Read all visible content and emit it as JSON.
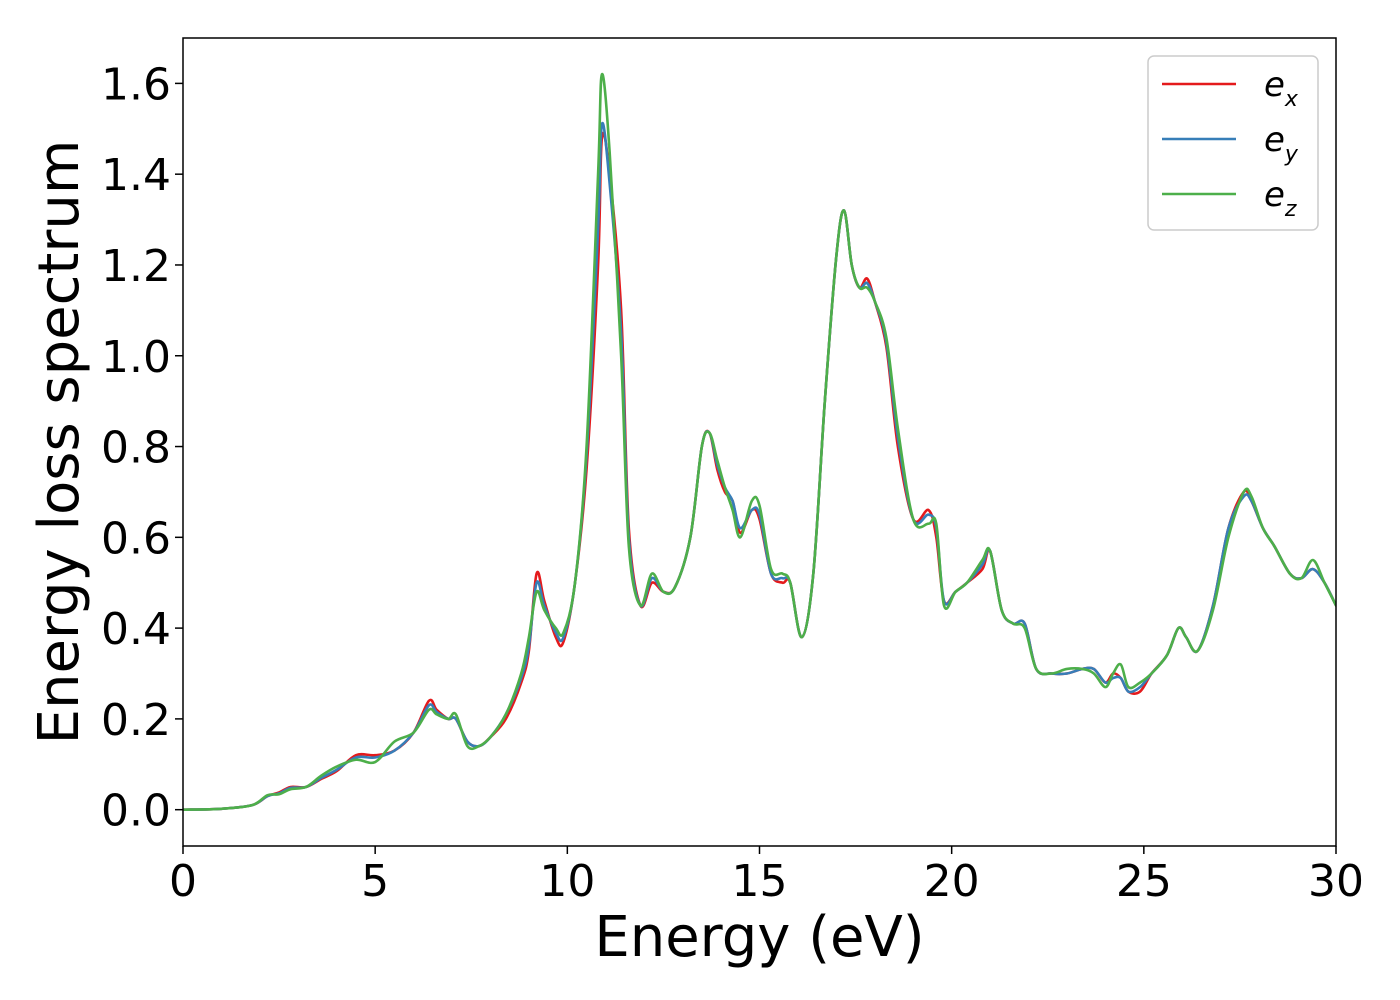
{
  "chart_data": {
    "type": "line",
    "title": "",
    "xlabel": "Energy (eV)",
    "ylabel": "Energy loss spectrum",
    "xlim": [
      0,
      30
    ],
    "ylim": [
      -0.08,
      1.7
    ],
    "xticks": [
      0,
      5,
      10,
      15,
      20,
      25,
      30
    ],
    "xtick_labels": [
      "0",
      "5",
      "10",
      "15",
      "20",
      "25",
      "30"
    ],
    "yticks": [
      0.0,
      0.2,
      0.4,
      0.6,
      0.8,
      1.0,
      1.2,
      1.4,
      1.6
    ],
    "ytick_labels": [
      "0.0",
      "0.2",
      "0.4",
      "0.6",
      "0.8",
      "1.0",
      "1.2",
      "1.4",
      "1.6"
    ],
    "grid": false,
    "legend_position": "top-right",
    "series": [
      {
        "name": "e",
        "subscript": "x",
        "color": "#e41a1c",
        "x": [
          0,
          1,
          1.8,
          2.2,
          2.5,
          2.8,
          3.2,
          3.6,
          4,
          4.5,
          5,
          5.5,
          6,
          6.4,
          6.6,
          6.9,
          7.1,
          7.4,
          7.7,
          8,
          8.4,
          8.8,
          9,
          9.2,
          9.4,
          9.7,
          9.9,
          10.2,
          10.5,
          10.8,
          10.9,
          11.1,
          11.4,
          11.6,
          11.9,
          12.2,
          12.5,
          12.8,
          13.2,
          13.5,
          13.7,
          13.9,
          14.1,
          14.3,
          14.5,
          14.8,
          15,
          15.3,
          15.6,
          15.8,
          16.1,
          16.4,
          16.7,
          17,
          17.2,
          17.4,
          17.6,
          17.8,
          18,
          18.3,
          18.6,
          19,
          19.4,
          19.6,
          19.8,
          20.1,
          20.4,
          20.8,
          21,
          21.3,
          21.6,
          21.9,
          22.2,
          22.6,
          23,
          23.4,
          23.7,
          24,
          24.2,
          24.4,
          24.6,
          24.9,
          25.2,
          25.6,
          25.9,
          26.1,
          26.4,
          26.8,
          27.2,
          27.6,
          27.8,
          28.1,
          28.4,
          28.8,
          29.1,
          29.4,
          29.7,
          30
        ],
        "y": [
          0,
          0.002,
          0.01,
          0.03,
          0.038,
          0.05,
          0.05,
          0.068,
          0.085,
          0.12,
          0.12,
          0.13,
          0.17,
          0.24,
          0.22,
          0.2,
          0.2,
          0.15,
          0.14,
          0.16,
          0.2,
          0.28,
          0.35,
          0.52,
          0.46,
          0.38,
          0.37,
          0.5,
          0.75,
          1.2,
          1.48,
          1.4,
          1.1,
          0.62,
          0.45,
          0.5,
          0.48,
          0.49,
          0.6,
          0.8,
          0.83,
          0.75,
          0.7,
          0.68,
          0.61,
          0.66,
          0.64,
          0.52,
          0.5,
          0.5,
          0.38,
          0.52,
          0.9,
          1.22,
          1.32,
          1.2,
          1.15,
          1.17,
          1.12,
          1.02,
          0.8,
          0.64,
          0.66,
          0.6,
          0.46,
          0.48,
          0.5,
          0.53,
          0.57,
          0.44,
          0.41,
          0.41,
          0.31,
          0.3,
          0.3,
          0.31,
          0.31,
          0.28,
          0.3,
          0.29,
          0.26,
          0.26,
          0.3,
          0.34,
          0.4,
          0.38,
          0.35,
          0.45,
          0.62,
          0.7,
          0.68,
          0.62,
          0.58,
          0.52,
          0.51,
          0.53,
          0.5,
          0.45
        ]
      },
      {
        "name": "e",
        "subscript": "y",
        "color": "#377eb8",
        "x": [
          0,
          1,
          1.8,
          2.2,
          2.5,
          2.8,
          3.2,
          3.6,
          4,
          4.5,
          5,
          5.5,
          6,
          6.4,
          6.6,
          6.9,
          7.1,
          7.4,
          7.7,
          8,
          8.4,
          8.8,
          9,
          9.2,
          9.4,
          9.7,
          9.9,
          10.2,
          10.5,
          10.8,
          10.9,
          11.1,
          11.4,
          11.6,
          11.9,
          12.2,
          12.5,
          12.8,
          13.2,
          13.5,
          13.7,
          13.9,
          14.1,
          14.3,
          14.5,
          14.8,
          15,
          15.3,
          15.6,
          15.8,
          16.1,
          16.4,
          16.7,
          17,
          17.2,
          17.4,
          17.6,
          17.8,
          18,
          18.3,
          18.6,
          19,
          19.4,
          19.6,
          19.8,
          20.1,
          20.4,
          20.8,
          21,
          21.3,
          21.6,
          21.9,
          22.2,
          22.6,
          23,
          23.4,
          23.7,
          24,
          24.2,
          24.4,
          24.6,
          24.9,
          25.2,
          25.6,
          25.9,
          26.1,
          26.4,
          26.8,
          27.2,
          27.6,
          27.8,
          28.1,
          28.4,
          28.8,
          29.1,
          29.4,
          29.7,
          30
        ],
        "y": [
          0,
          0.002,
          0.01,
          0.03,
          0.036,
          0.048,
          0.05,
          0.07,
          0.088,
          0.115,
          0.115,
          0.13,
          0.17,
          0.23,
          0.215,
          0.2,
          0.2,
          0.15,
          0.14,
          0.16,
          0.21,
          0.29,
          0.36,
          0.5,
          0.45,
          0.39,
          0.38,
          0.5,
          0.78,
          1.28,
          1.51,
          1.38,
          1.05,
          0.6,
          0.45,
          0.51,
          0.48,
          0.49,
          0.6,
          0.8,
          0.83,
          0.76,
          0.71,
          0.68,
          0.62,
          0.66,
          0.65,
          0.52,
          0.51,
          0.5,
          0.38,
          0.52,
          0.9,
          1.22,
          1.32,
          1.2,
          1.15,
          1.16,
          1.12,
          1.03,
          0.82,
          0.64,
          0.65,
          0.62,
          0.46,
          0.48,
          0.5,
          0.54,
          0.57,
          0.44,
          0.41,
          0.41,
          0.31,
          0.3,
          0.3,
          0.31,
          0.31,
          0.28,
          0.29,
          0.29,
          0.26,
          0.27,
          0.3,
          0.34,
          0.4,
          0.38,
          0.35,
          0.45,
          0.62,
          0.69,
          0.68,
          0.62,
          0.58,
          0.52,
          0.51,
          0.53,
          0.5,
          0.45
        ]
      },
      {
        "name": "e",
        "subscript": "z",
        "color": "#4daf4a",
        "x": [
          0,
          1,
          1.8,
          2.2,
          2.5,
          2.8,
          3.2,
          3.6,
          4,
          4.5,
          5,
          5.5,
          6,
          6.4,
          6.6,
          6.9,
          7.1,
          7.4,
          7.7,
          8,
          8.4,
          8.8,
          9,
          9.2,
          9.4,
          9.7,
          9.9,
          10.2,
          10.5,
          10.8,
          10.9,
          11.1,
          11.4,
          11.6,
          11.9,
          12.2,
          12.5,
          12.8,
          13.2,
          13.5,
          13.7,
          13.9,
          14.1,
          14.3,
          14.5,
          14.8,
          15,
          15.3,
          15.6,
          15.8,
          16.1,
          16.4,
          16.7,
          17,
          17.2,
          17.4,
          17.6,
          17.8,
          18,
          18.3,
          18.6,
          19,
          19.4,
          19.6,
          19.8,
          20.1,
          20.4,
          20.8,
          21,
          21.3,
          21.6,
          21.9,
          22.2,
          22.6,
          23,
          23.4,
          23.7,
          24,
          24.2,
          24.4,
          24.6,
          24.9,
          25.2,
          25.6,
          25.9,
          26.1,
          26.4,
          26.8,
          27.2,
          27.6,
          27.8,
          28.1,
          28.4,
          28.8,
          29.1,
          29.4,
          29.7,
          30
        ],
        "y": [
          0,
          0.002,
          0.01,
          0.032,
          0.034,
          0.045,
          0.05,
          0.075,
          0.095,
          0.11,
          0.105,
          0.15,
          0.17,
          0.22,
          0.21,
          0.2,
          0.21,
          0.14,
          0.14,
          0.16,
          0.21,
          0.3,
          0.38,
          0.48,
          0.44,
          0.4,
          0.39,
          0.5,
          0.8,
          1.4,
          1.62,
          1.45,
          1.0,
          0.58,
          0.45,
          0.52,
          0.48,
          0.49,
          0.6,
          0.8,
          0.83,
          0.77,
          0.71,
          0.66,
          0.6,
          0.68,
          0.67,
          0.53,
          0.52,
          0.5,
          0.38,
          0.52,
          0.9,
          1.22,
          1.32,
          1.2,
          1.15,
          1.15,
          1.12,
          1.04,
          0.84,
          0.64,
          0.63,
          0.63,
          0.45,
          0.48,
          0.5,
          0.55,
          0.57,
          0.44,
          0.41,
          0.4,
          0.31,
          0.3,
          0.31,
          0.31,
          0.3,
          0.27,
          0.3,
          0.32,
          0.27,
          0.28,
          0.3,
          0.34,
          0.4,
          0.38,
          0.35,
          0.44,
          0.6,
          0.7,
          0.69,
          0.62,
          0.58,
          0.52,
          0.51,
          0.55,
          0.5,
          0.45
        ]
      }
    ]
  }
}
